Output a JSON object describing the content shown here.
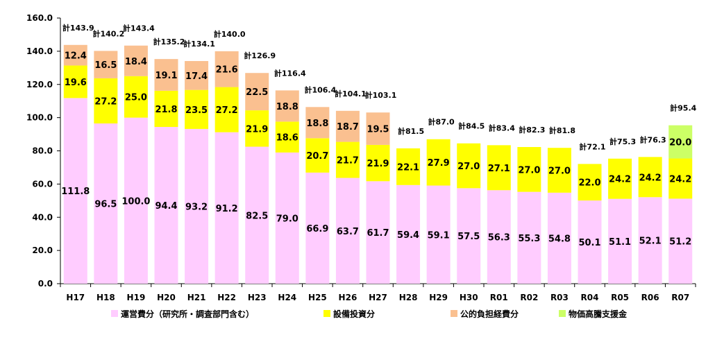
{
  "chart_data": {
    "type": "bar",
    "stacked": true,
    "categories": [
      "H17",
      "H18",
      "H19",
      "H20",
      "H21",
      "H22",
      "H23",
      "H24",
      "H25",
      "H26",
      "H27",
      "H28",
      "H29",
      "H30",
      "R01",
      "R02",
      "R03",
      "R04",
      "R05",
      "R06",
      "R07"
    ],
    "series": [
      {
        "name": "運営費分（研究所・調査部門含む）",
        "color": "#ffccff",
        "values": [
          111.8,
          96.5,
          100.0,
          94.4,
          93.2,
          91.2,
          82.5,
          79.0,
          66.9,
          63.7,
          61.7,
          59.4,
          59.1,
          57.5,
          56.3,
          55.3,
          54.8,
          50.1,
          51.1,
          52.1,
          51.2
        ]
      },
      {
        "name": "設備投資分",
        "color": "#ffff00",
        "values": [
          19.6,
          27.2,
          25.0,
          21.8,
          23.5,
          27.2,
          21.9,
          18.6,
          20.7,
          21.7,
          21.9,
          22.1,
          27.9,
          27.0,
          27.1,
          27.0,
          27.0,
          22.0,
          24.2,
          24.2,
          24.2
        ]
      },
      {
        "name": "公的負担経費分",
        "color": "#fac090",
        "values": [
          12.4,
          16.5,
          18.4,
          19.1,
          17.4,
          21.6,
          22.5,
          18.8,
          18.8,
          18.7,
          19.5,
          null,
          null,
          null,
          null,
          null,
          null,
          null,
          null,
          null,
          null
        ]
      },
      {
        "name": "物価高騰支援金",
        "color": "#ccff66",
        "values": [
          null,
          null,
          null,
          null,
          null,
          null,
          null,
          null,
          null,
          null,
          null,
          null,
          null,
          null,
          null,
          null,
          null,
          null,
          null,
          null,
          20.0
        ]
      }
    ],
    "totals": [
      "計143.9",
      "計140.2",
      "計143.4",
      "計135.2",
      "計134.1",
      "計140.0",
      "計126.9",
      "計116.4",
      "計106.4",
      "計104.1",
      "計103.1",
      "計81.5",
      "計87.0",
      "計84.5",
      "計83.4",
      "計82.3",
      "計81.8",
      "計72.1",
      "計75.3",
      "計76.3",
      "計95.4"
    ],
    "ylim": [
      0,
      160
    ],
    "yticks": [
      "0.0",
      "20.0",
      "40.0",
      "60.0",
      "80.0",
      "100.0",
      "120.0",
      "140.0",
      "160.0"
    ],
    "grid": false,
    "legend_position": "bottom"
  }
}
